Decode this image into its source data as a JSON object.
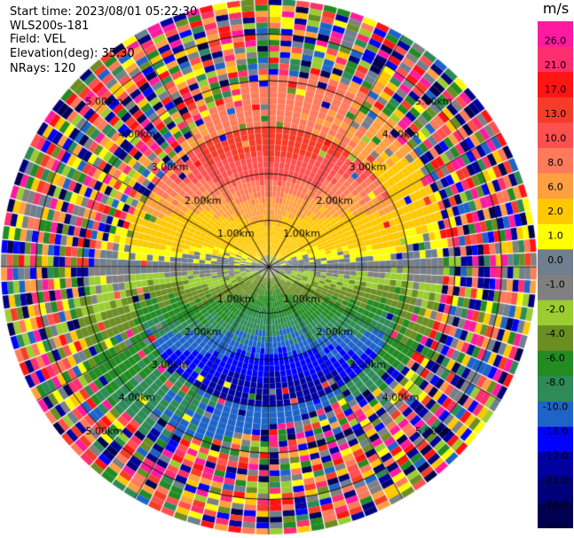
{
  "header": {
    "start_time": "Start time: 2023/08/01 05:22:30",
    "station": "WLS200s-181",
    "field": "Field: VEL",
    "elevation": "Elevation(deg): 35.30",
    "nrays": "NRays: 120"
  },
  "colorbar": {
    "unit": "m/s",
    "ticks": [
      "26.0",
      "21.0",
      "17.0",
      "13.0",
      "10.0",
      "8.0",
      "6.0",
      "2.0",
      "1.0",
      "0.0",
      "-1.0",
      "-2.0",
      "-4.0",
      "-6.0",
      "-8.0",
      "-10.0",
      "-13.0",
      "-17.0",
      "-21.0",
      "-26.0",
      "-30.0"
    ],
    "colors": [
      "#ff1aa0",
      "#ff2e6e",
      "#ff1414",
      "#f53c28",
      "#ff5050",
      "#ff7a5a",
      "#ffa040",
      "#ffc800",
      "#ffff00",
      "#6e7f8f",
      "#808080",
      "#9acd32",
      "#6b8e23",
      "#228b22",
      "#2e8b57",
      "#1e64c8",
      "#0000ff",
      "#0000a0",
      "#00007a",
      "#000050"
    ]
  },
  "chart_data": {
    "type": "heatmap",
    "projection": "polar-ppi",
    "field": "VEL",
    "units": "m/s",
    "nrays": 120,
    "range_rings_km": [
      1.0,
      2.0,
      3.0,
      4.0,
      5.0
    ],
    "ring_labels": [
      "1.00km",
      "2.00km",
      "3.00km",
      "4.00km",
      "5.00km"
    ],
    "max_range_km": 5.75,
    "vmin": -30.0,
    "vmax": 30.0
  }
}
